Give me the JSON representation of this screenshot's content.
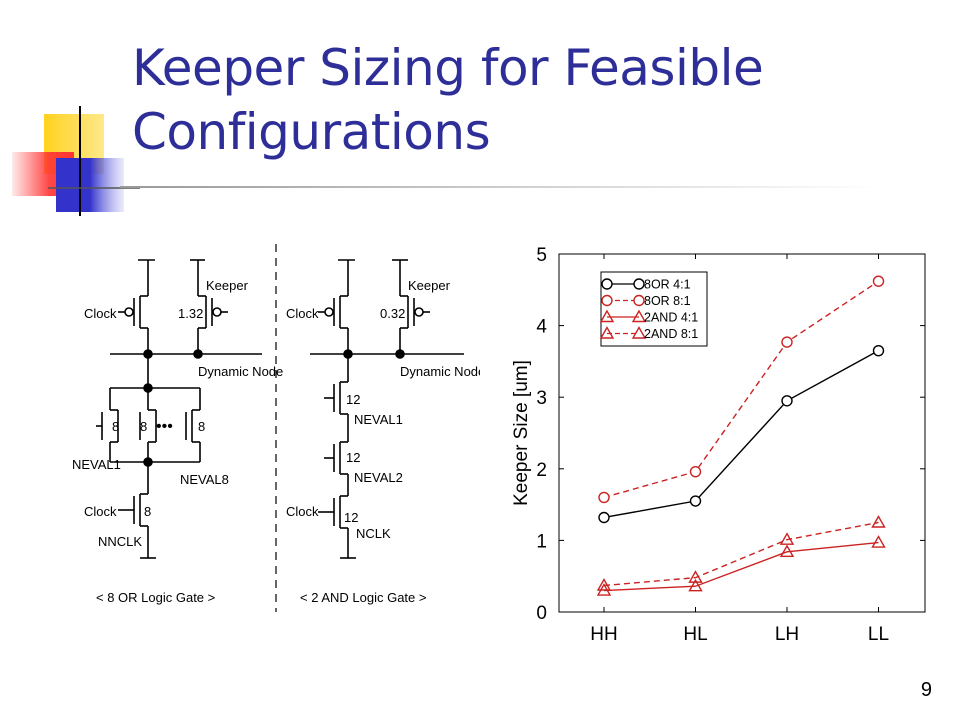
{
  "slide": {
    "title_line1": "Keeper Sizing for Feasible",
    "title_line2": "Configurations",
    "page_number": "9"
  },
  "colors": {
    "title": "#2e2e99",
    "deco_yellow": "#ffd21f",
    "deco_blue": "#3333cc",
    "deco_red": "#ff3333",
    "series_black": "#000000",
    "series_red": "#cc2222"
  },
  "circuit": {
    "or_gate": {
      "clock_label": "Clock",
      "keeper_label": "Keeper",
      "keeper_size": "1.32",
      "dynamic_node_label": "Dynamic Node",
      "eval_size_1": "8",
      "eval_size_2": "8",
      "eval_size_3": "8",
      "dots": "•••",
      "neval1_label": "NEVAL1",
      "neval8_label": "NEVAL8",
      "clock2_label": "Clock",
      "foot_size": "8",
      "nnclk_label": "NNCLK",
      "caption": "< 8 OR Logic Gate >"
    },
    "and_gate": {
      "clock_label": "Clock",
      "keeper_label": "Keeper",
      "keeper_size": "0.32",
      "dynamic_node_label": "Dynamic Node",
      "eval1_size": "12",
      "neval1_label": "NEVAL1",
      "eval2_size": "12",
      "neval2_label": "NEVAL2",
      "clock2_label": "Clock",
      "foot_size": "12",
      "nclk_label": "NCLK",
      "caption": "< 2 AND Logic Gate >"
    }
  },
  "chart_data": {
    "type": "line",
    "categories": [
      "HH",
      "HL",
      "LH",
      "LL"
    ],
    "ylabel": "Keeper Size [um]",
    "xlabel": "",
    "ylim": [
      0,
      5
    ],
    "yticks": [
      "0",
      "1",
      "2",
      "3",
      "4",
      "5"
    ],
    "grid": false,
    "legend_position": "top-left",
    "series": [
      {
        "name": "8OR 4:1",
        "values": [
          1.32,
          1.55,
          2.95,
          3.65
        ],
        "color": "#000000",
        "dash": false,
        "marker": "circle"
      },
      {
        "name": "8OR 8:1",
        "values": [
          1.6,
          1.96,
          3.77,
          4.62
        ],
        "color": "#cc2222",
        "dash": true,
        "marker": "circle"
      },
      {
        "name": "2AND 4:1",
        "values": [
          0.3,
          0.36,
          0.84,
          0.97
        ],
        "color": "#cc2222",
        "dash": false,
        "marker": "triangle"
      },
      {
        "name": "2AND 8:1",
        "values": [
          0.37,
          0.48,
          1.01,
          1.25
        ],
        "color": "#cc2222",
        "dash": true,
        "marker": "triangle"
      }
    ]
  }
}
